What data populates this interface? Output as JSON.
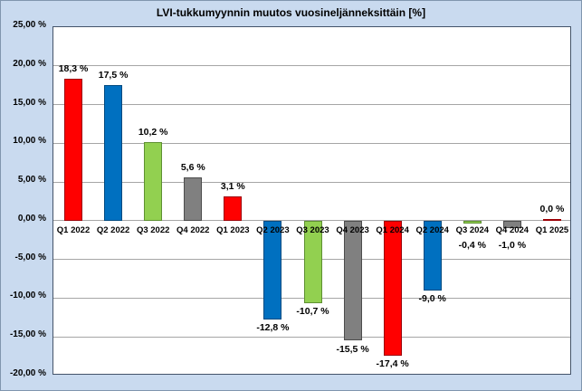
{
  "chart_data": {
    "type": "bar",
    "title": "LVI-tukkumyynnin muutos vuosineljänneksittäin [%]",
    "categories": [
      "Q1 2022",
      "Q2 2022",
      "Q3 2022",
      "Q4 2022",
      "Q1 2023",
      "Q2 2023",
      "Q3 2023",
      "Q4 2023",
      "Q1 2024",
      "Q2 2024",
      "Q3 2024",
      "Q4 2024",
      "Q1 2025"
    ],
    "values": [
      18.3,
      17.5,
      10.2,
      5.6,
      3.1,
      -12.8,
      -10.7,
      -15.5,
      -17.4,
      -9.0,
      -0.4,
      -1.0,
      0.0
    ],
    "data_labels": [
      "18,3 %",
      "17,5 %",
      "10,2 %",
      "5,6 %",
      "3,1 %",
      "-12,8 %",
      "-10,7 %",
      "-15,5 %",
      "-17,4 %",
      "-9,0 %",
      "-0,4 %",
      "-1,0 %",
      "0,0 %"
    ],
    "bar_colors": [
      "#FF0000",
      "#0070C0",
      "#92D050",
      "#808080",
      "#FF0000",
      "#0070C0",
      "#92D050",
      "#808080",
      "#FF0000",
      "#0070C0",
      "#92D050",
      "#808080",
      "#FF0000"
    ],
    "bar_border_colors": [
      "#9C0006",
      "#004A80",
      "#5E9032",
      "#4D4D4D",
      "#9C0006",
      "#004A80",
      "#5E9032",
      "#4D4D4D",
      "#9C0006",
      "#004A80",
      "#5E9032",
      "#4D4D4D",
      "#9C0006"
    ],
    "xlabel": "",
    "ylabel": "",
    "ylim": [
      -20,
      25
    ],
    "ytick_step": 5,
    "ytick_values": [
      25,
      20,
      15,
      10,
      5,
      0,
      -5,
      -10,
      -15,
      -20
    ],
    "ytick_labels": [
      "25,00 %",
      "20,00 %",
      "15,00 %",
      "10,00 %",
      "5,00 %",
      "0,00 %",
      "-5,00 %",
      "-10,00 %",
      "-15,00 %",
      "-20,00 %"
    ],
    "grid": true,
    "legend": "none"
  },
  "colors": {
    "page_background": "#C9DAEF",
    "plot_background": "#FFFFFF",
    "plot_border": "#44546A",
    "gridline": "#A6A6A6",
    "outer_border": "#8096AE"
  }
}
